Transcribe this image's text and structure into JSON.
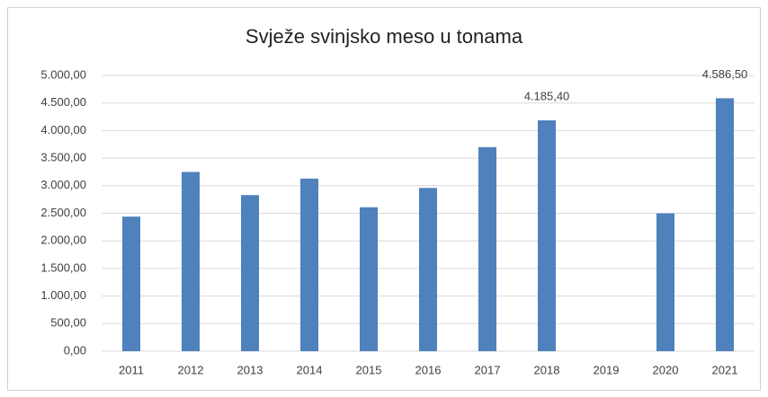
{
  "chart_data": {
    "type": "bar",
    "title": "Svježe svinjsko meso u tonama",
    "categories": [
      "2011",
      "2012",
      "2013",
      "2014",
      "2015",
      "2016",
      "2017",
      "2018",
      "2019",
      "2020",
      "2021"
    ],
    "values": [
      2440,
      3250,
      2830,
      3130,
      2610,
      2960,
      3700,
      4185.4,
      null,
      2500,
      4586.5
    ],
    "value_labels": [
      null,
      null,
      null,
      null,
      null,
      null,
      null,
      "4.185,40",
      null,
      null,
      "4.586,50"
    ],
    "color": "#4f81bd",
    "ylim": [
      0,
      5000
    ],
    "yticks": [
      {
        "value": 0,
        "label": "0,00"
      },
      {
        "value": 500,
        "label": "500,00"
      },
      {
        "value": 1000,
        "label": "1.000,00"
      },
      {
        "value": 1500,
        "label": "1.500,00"
      },
      {
        "value": 2000,
        "label": "2.000,00"
      },
      {
        "value": 2500,
        "label": "2.500,00"
      },
      {
        "value": 3000,
        "label": "3.000,00"
      },
      {
        "value": 3500,
        "label": "3.500,00"
      },
      {
        "value": 4000,
        "label": "4.000,00"
      },
      {
        "value": 4500,
        "label": "4.500,00"
      },
      {
        "value": 5000,
        "label": "5.000,00"
      }
    ],
    "grid": true
  }
}
